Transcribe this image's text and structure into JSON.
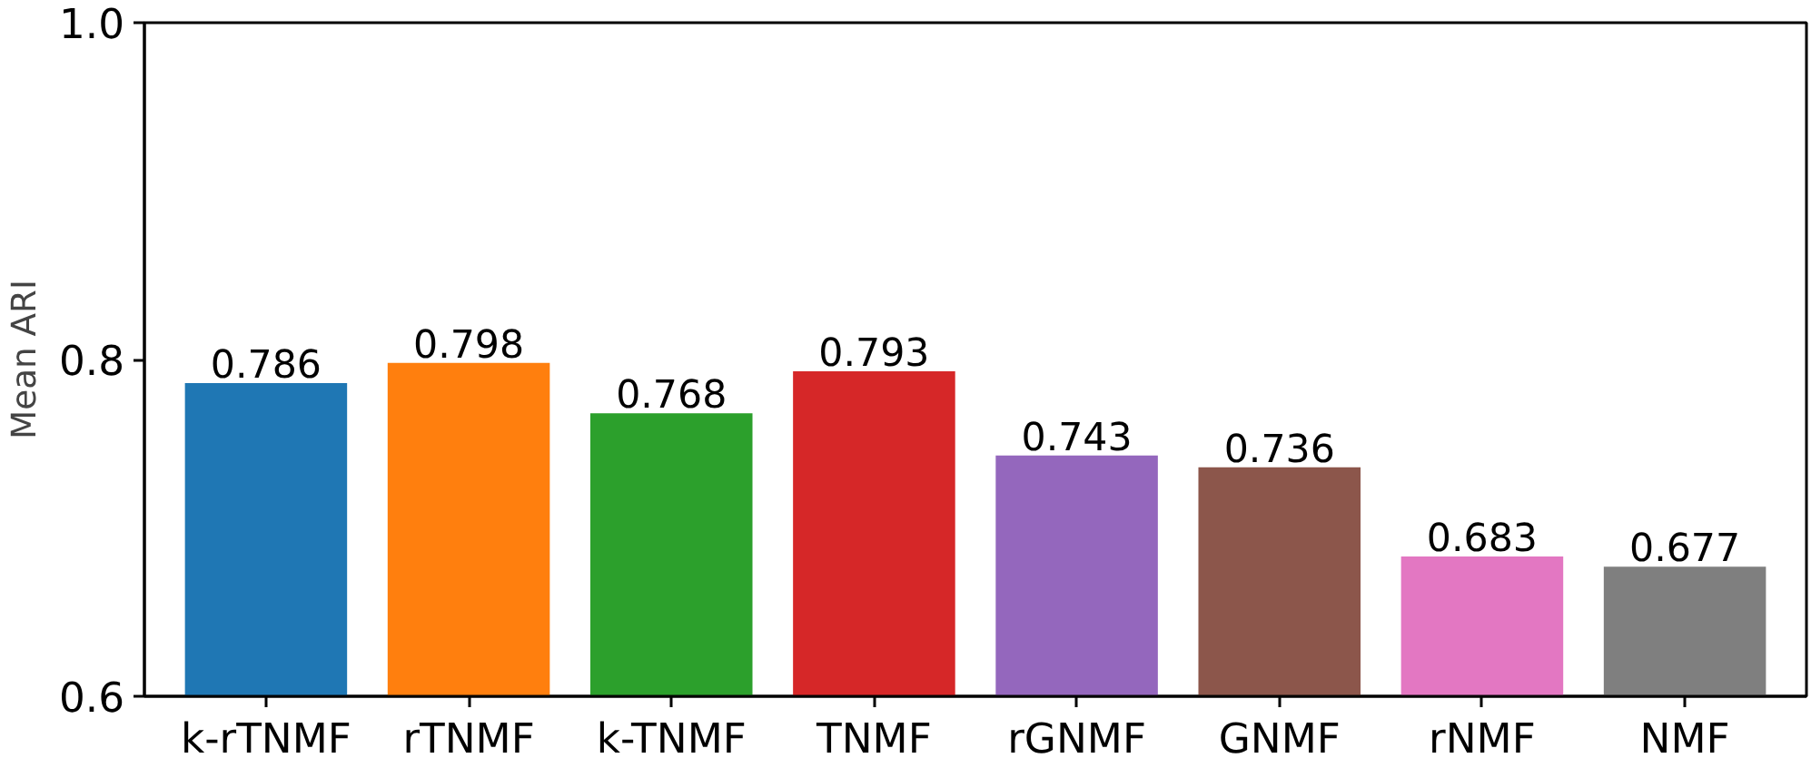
{
  "chart_data": {
    "type": "bar",
    "ylabel": "Mean ARI",
    "categories": [
      "k-rTNMF",
      "rTNMF",
      "k-TNMF",
      "TNMF",
      "rGNMF",
      "GNMF",
      "rNMF",
      "NMF"
    ],
    "values": [
      0.786,
      0.798,
      0.768,
      0.793,
      0.743,
      0.736,
      0.683,
      0.677
    ],
    "colors": [
      "#1f77b4",
      "#ff7f0e",
      "#2ca02c",
      "#d62728",
      "#9467bd",
      "#8c564b",
      "#e377c2",
      "#7f7f7f"
    ],
    "ylim": [
      0.6,
      1.0
    ],
    "yticks": [
      0.6,
      0.8,
      {
        "value": 1.0,
        "label": "1.0"
      }
    ],
    "data_labels": true,
    "grid": false
  }
}
